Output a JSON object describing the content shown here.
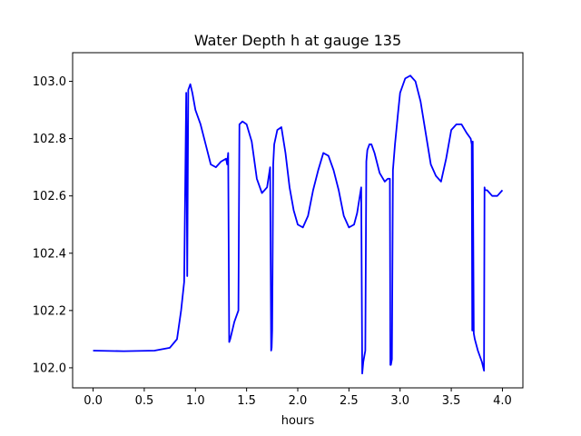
{
  "chart_data": {
    "type": "line",
    "title": "Water Depth h at gauge 135",
    "xlabel": "hours",
    "ylabel": "",
    "xlim": [
      -0.2,
      4.2
    ],
    "ylim": [
      101.93,
      103.1
    ],
    "x_ticks": [
      "0.0",
      "0.5",
      "1.0",
      "1.5",
      "2.0",
      "2.5",
      "3.0",
      "3.5",
      "4.0"
    ],
    "y_ticks": [
      "102.0",
      "102.2",
      "102.4",
      "102.6",
      "102.8",
      "103.0"
    ],
    "grid": false,
    "legend": "none",
    "series": [
      {
        "color": "#0000ff",
        "x": [
          0.0,
          0.3,
          0.6,
          0.75,
          0.82,
          0.86,
          0.89,
          0.91,
          0.92,
          0.93,
          0.95,
          0.97,
          1.0,
          1.05,
          1.1,
          1.15,
          1.2,
          1.25,
          1.3,
          1.31,
          1.32,
          1.33,
          1.34,
          1.38,
          1.42,
          1.43,
          1.46,
          1.5,
          1.55,
          1.6,
          1.65,
          1.7,
          1.73,
          1.74,
          1.745,
          1.75,
          1.76,
          1.77,
          1.8,
          1.84,
          1.88,
          1.92,
          1.96,
          2.0,
          2.05,
          2.1,
          2.15,
          2.2,
          2.25,
          2.3,
          2.35,
          2.4,
          2.45,
          2.5,
          2.55,
          2.58,
          2.62,
          2.63,
          2.64,
          2.66,
          2.67,
          2.68,
          2.7,
          2.72,
          2.75,
          2.8,
          2.85,
          2.88,
          2.9,
          2.905,
          2.91,
          2.92,
          2.93,
          2.95,
          2.98,
          3.0,
          3.05,
          3.1,
          3.15,
          3.2,
          3.25,
          3.3,
          3.35,
          3.4,
          3.45,
          3.5,
          3.55,
          3.6,
          3.65,
          3.69,
          3.7,
          3.705,
          3.71,
          3.72,
          3.73,
          3.76,
          3.8,
          3.82,
          3.825,
          3.83,
          3.85,
          3.9,
          3.95,
          4.0
        ],
        "y": [
          102.06,
          102.058,
          102.06,
          102.07,
          102.1,
          102.2,
          102.3,
          102.96,
          102.32,
          102.97,
          102.99,
          102.96,
          102.9,
          102.85,
          102.78,
          102.71,
          102.7,
          102.72,
          102.73,
          102.71,
          102.75,
          102.09,
          102.1,
          102.16,
          102.2,
          102.85,
          102.86,
          102.85,
          102.79,
          102.66,
          102.61,
          102.63,
          102.7,
          102.06,
          102.07,
          102.13,
          102.71,
          102.78,
          102.83,
          102.84,
          102.75,
          102.63,
          102.55,
          102.5,
          102.49,
          102.53,
          102.62,
          102.69,
          102.75,
          102.74,
          102.69,
          102.62,
          102.53,
          102.49,
          102.5,
          102.54,
          102.63,
          101.98,
          102.02,
          102.06,
          102.72,
          102.76,
          102.78,
          102.78,
          102.75,
          102.68,
          102.65,
          102.66,
          102.66,
          102.01,
          102.01,
          102.03,
          102.69,
          102.78,
          102.89,
          102.96,
          103.01,
          103.02,
          103.0,
          102.93,
          102.82,
          102.71,
          102.67,
          102.65,
          102.73,
          102.83,
          102.85,
          102.85,
          102.82,
          102.8,
          102.78,
          102.13,
          102.79,
          102.12,
          102.1,
          102.06,
          102.02,
          101.99,
          102.63,
          102.62,
          102.62,
          102.6,
          102.6,
          102.62
        ]
      }
    ]
  }
}
